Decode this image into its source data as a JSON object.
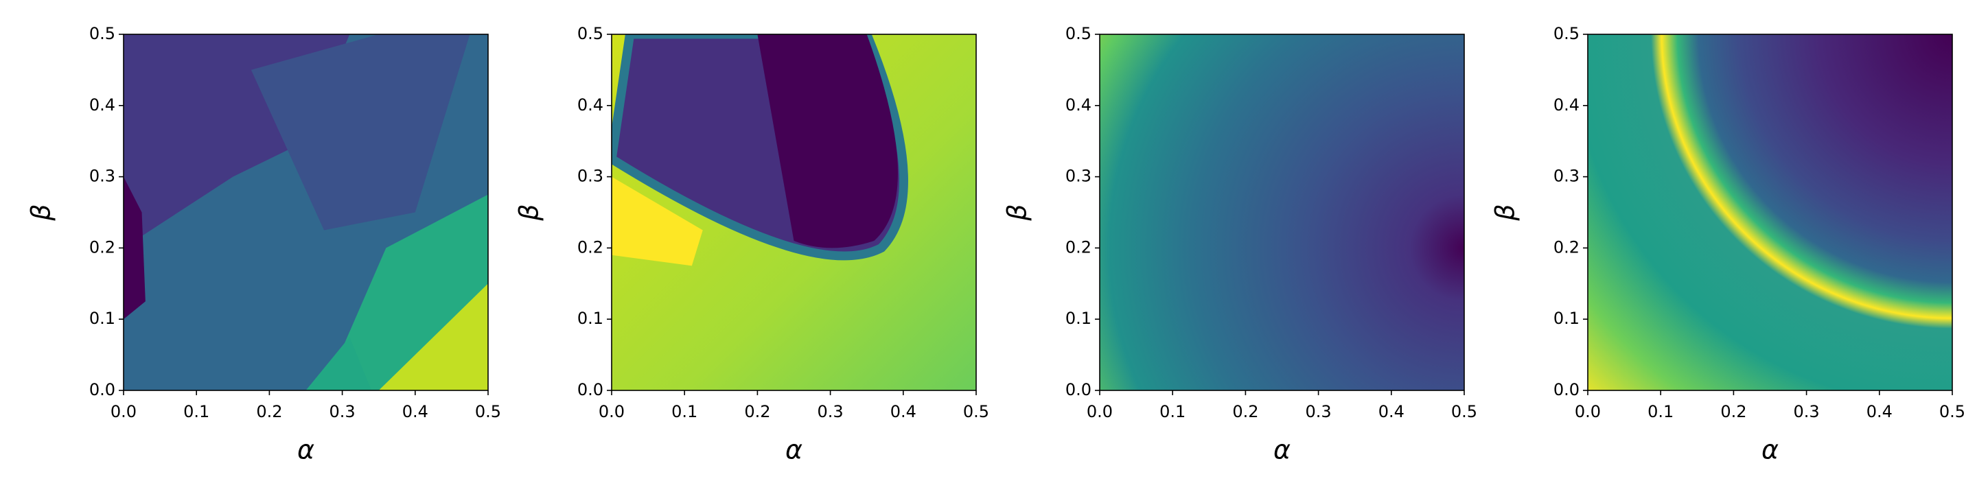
{
  "chart_data": [
    {
      "type": "contour",
      "xlabel": "α",
      "ylabel": "β",
      "xlim": [
        0,
        0.5
      ],
      "ylim": [
        0,
        0.5
      ],
      "xticks": [
        {
          "value": 0,
          "label": "0.0"
        },
        0.1,
        0.2,
        0.3,
        0.4,
        0.5
      ],
      "yticks": [
        {
          "value": 0,
          "label": "0.0"
        },
        0.1,
        0.2,
        0.3,
        0.4,
        0.5
      ]
    },
    {
      "type": "contour",
      "xlabel": "α",
      "ylabel": "β",
      "xlim": [
        0,
        0.5
      ],
      "ylim": [
        0,
        0.5
      ],
      "xticks": [
        {
          "value": 0,
          "label": "0.0"
        },
        0.1,
        0.2,
        0.3,
        0.4,
        0.5
      ],
      "yticks": [
        {
          "value": 0,
          "label": "0.0"
        },
        0.1,
        0.2,
        0.3,
        0.4,
        0.5
      ]
    },
    {
      "type": "contour",
      "xlabel": "α",
      "ylabel": "β",
      "xlim": [
        0,
        0.5
      ],
      "ylim": [
        0,
        0.5
      ],
      "xticks": [
        {
          "value": 0,
          "label": "0.0"
        },
        0.1,
        0.2,
        0.3,
        0.4,
        0.5
      ],
      "yticks": [
        {
          "value": 0,
          "label": "0.0"
        },
        0.1,
        0.2,
        0.3,
        0.4,
        0.5
      ]
    },
    {
      "type": "contour",
      "xlabel": "α",
      "ylabel": "β",
      "xlim": [
        0,
        0.5
      ],
      "ylim": [
        0,
        0.5
      ],
      "xticks": [
        {
          "value": 0,
          "label": "0.0"
        },
        0.1,
        0.2,
        0.3,
        0.4,
        0.5
      ],
      "yticks": [
        {
          "value": 0,
          "label": "0.0"
        },
        0.1,
        0.2,
        0.3,
        0.4,
        0.5
      ]
    }
  ]
}
